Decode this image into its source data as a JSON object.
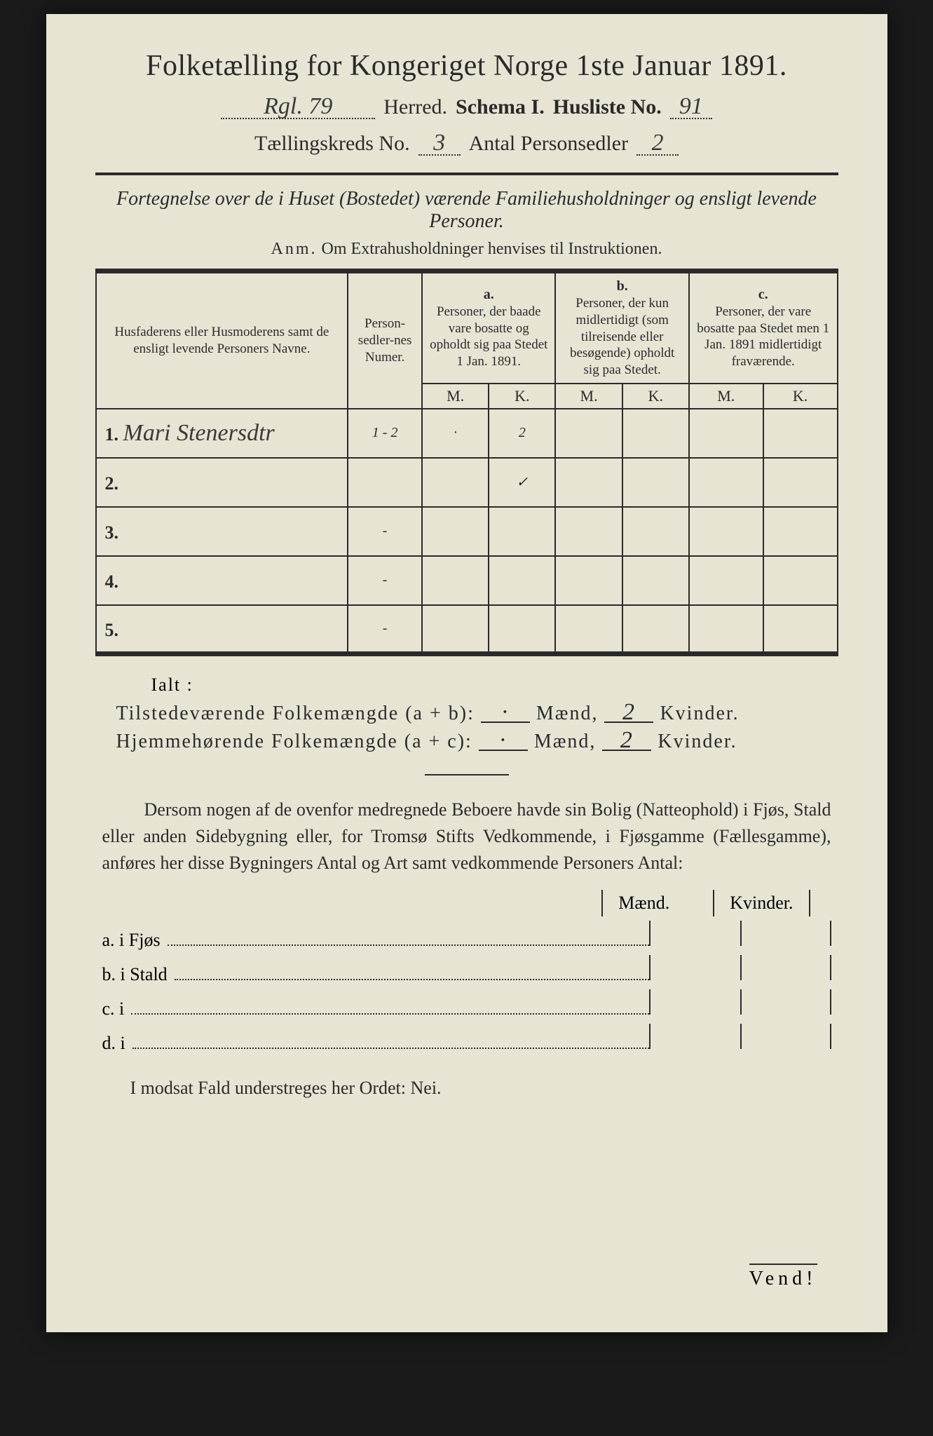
{
  "title": "Folketælling for Kongeriget Norge 1ste Januar 1891.",
  "header": {
    "herred_value": "Rgl. 79",
    "herred_label": "Herred.",
    "schema_label": "Schema I.",
    "husliste_label": "Husliste No.",
    "husliste_value": "91",
    "kreds_label": "Tællingskreds No.",
    "kreds_value": "3",
    "antal_label": "Antal Personsedler",
    "antal_value": "2"
  },
  "subtitle": "Fortegnelse over de i Huset (Bostedet) værende Familiehusholdninger og ensligt levende Personer.",
  "anm_label": "Anm.",
  "anm_text": "Om Extrahusholdninger henvises til Instruktionen.",
  "table": {
    "col1": "Husfaderens eller Husmoderens samt de ensligt levende Personers Navne.",
    "col2": "Person-sedler-nes Numer.",
    "a_label": "a.",
    "a_text": "Personer, der baade vare bosatte og opholdt sig paa Stedet 1 Jan. 1891.",
    "b_label": "b.",
    "b_text": "Personer, der kun midlertidigt (som tilreisende eller besøgende) opholdt sig paa Stedet.",
    "c_label": "c.",
    "c_text": "Personer, der vare bosatte paa Stedet men 1 Jan. 1891 midlertidigt fraværende.",
    "M": "M.",
    "K": "K.",
    "rows": [
      {
        "num": "1.",
        "name": "Mari Stenersdtr",
        "sedler": "1 - 2",
        "aM": "·",
        "aK": "2",
        "bM": "",
        "bK": "",
        "cM": "",
        "cK": ""
      },
      {
        "num": "2.",
        "name": "",
        "sedler": "",
        "aM": "",
        "aK": "✓",
        "bM": "",
        "bK": "",
        "cM": "",
        "cK": ""
      },
      {
        "num": "3.",
        "name": "",
        "sedler": "-",
        "aM": "",
        "aK": "",
        "bM": "",
        "bK": "",
        "cM": "",
        "cK": ""
      },
      {
        "num": "4.",
        "name": "",
        "sedler": "-",
        "aM": "",
        "aK": "",
        "bM": "",
        "bK": "",
        "cM": "",
        "cK": ""
      },
      {
        "num": "5.",
        "name": "",
        "sedler": "-",
        "aM": "",
        "aK": "",
        "bM": "",
        "bK": "",
        "cM": "",
        "cK": ""
      }
    ]
  },
  "ialt": "Ialt :",
  "summary": {
    "line1_label": "Tilstedeværende Folkemængde (a + b):",
    "line2_label": "Hjemmehørende Folkemængde (a + c):",
    "maend": "Mænd,",
    "kvinder": "Kvinder.",
    "l1_m": "·",
    "l1_k": "2",
    "l2_m": "·",
    "l2_k": "2"
  },
  "para": "Dersom nogen af de ovenfor medregnede Beboere havde sin Bolig (Natteophold) i Fjøs, Stald eller anden Sidebygning eller, for Tromsø Stifts Vedkommende, i Fjøsgamme (Fællesgamme), anføres her disse Bygningers Antal og Art samt vedkommende Personers Antal:",
  "mk": {
    "maend": "Mænd.",
    "kvinder": "Kvinder."
  },
  "opts": {
    "a": "a.  i      Fjøs",
    "b": "b.  i      Stald",
    "c": "c.  i",
    "d": "d.  i"
  },
  "footer": "I modsat Fald understreges her Ordet: Nei.",
  "vend": "Vend!"
}
